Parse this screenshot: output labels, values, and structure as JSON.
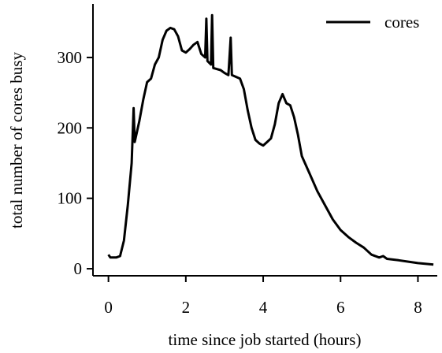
{
  "chart_data": {
    "type": "line",
    "xlabel": "time since job started (hours)",
    "ylabel": "total number of cores busy",
    "x": [
      0,
      0.05,
      0.2,
      0.3,
      0.4,
      0.5,
      0.6,
      0.65,
      0.68,
      0.8,
      0.9,
      1.0,
      1.1,
      1.2,
      1.3,
      1.4,
      1.5,
      1.6,
      1.7,
      1.8,
      1.9,
      2.0,
      2.1,
      2.2,
      2.3,
      2.4,
      2.5,
      2.53,
      2.56,
      2.65,
      2.68,
      2.71,
      2.9,
      3.0,
      3.1,
      3.16,
      3.19,
      3.4,
      3.5,
      3.6,
      3.7,
      3.8,
      3.9,
      4.0,
      4.1,
      4.2,
      4.3,
      4.4,
      4.5,
      4.6,
      4.7,
      4.8,
      4.9,
      5.0,
      5.2,
      5.4,
      5.6,
      5.8,
      6.0,
      6.2,
      6.4,
      6.6,
      6.8,
      7.0,
      7.1,
      7.2,
      7.5,
      8.0,
      8.4
    ],
    "series": [
      {
        "name": "cores",
        "color": "#000000",
        "values": [
          20,
          16,
          16,
          18,
          40,
          90,
          150,
          228,
          180,
          210,
          240,
          265,
          270,
          290,
          300,
          325,
          338,
          342,
          340,
          330,
          310,
          307,
          312,
          318,
          322,
          305,
          300,
          355,
          295,
          290,
          360,
          285,
          282,
          278,
          275,
          328,
          275,
          270,
          255,
          225,
          200,
          183,
          178,
          175,
          180,
          185,
          205,
          235,
          248,
          235,
          232,
          215,
          190,
          160,
          135,
          110,
          90,
          70,
          55,
          45,
          37,
          30,
          20,
          16,
          18,
          14,
          12,
          8,
          6
        ]
      }
    ],
    "xlim": [
      -0.4,
      8.5
    ],
    "xticks": [
      0,
      2,
      4,
      6,
      8
    ],
    "ylim": [
      -10,
      376
    ],
    "yticks": [
      0,
      100,
      200,
      300
    ],
    "legend": "upper right"
  }
}
